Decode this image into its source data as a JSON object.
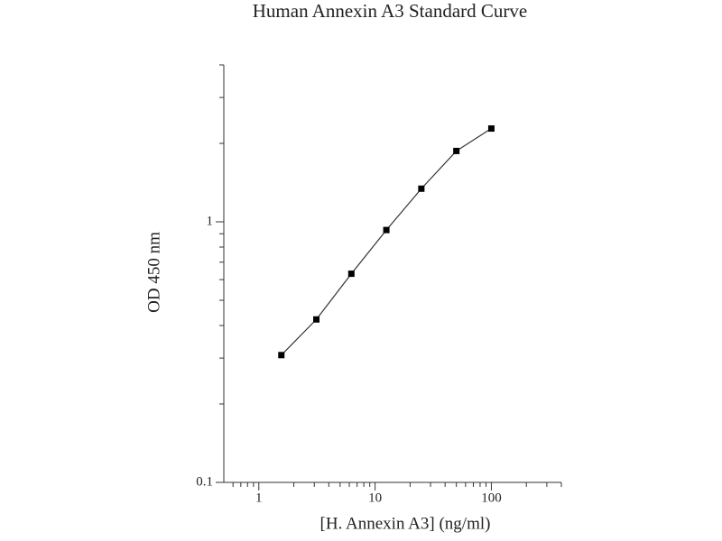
{
  "chart_data": {
    "type": "scatter",
    "title": "Human Annexin A3 Standard Curve",
    "x_label": "[H. Annexin A3] (ng/ml)",
    "y_label": "OD 450 nm",
    "x": [
      1.5625,
      3.125,
      6.25,
      12.5,
      25,
      50,
      100
    ],
    "values": [
      0.308,
      0.422,
      0.632,
      0.93,
      1.34,
      1.87,
      2.28
    ],
    "color": "#000000",
    "x_log": true,
    "y_log": true,
    "xlim": [
      0.5,
      400
    ],
    "ylim": [
      0.1,
      4
    ],
    "xticks": [
      1,
      10,
      100
    ],
    "yticks": [
      0.1,
      1
    ],
    "xminorticks": [
      0.6,
      0.7,
      0.8,
      0.9,
      2,
      3,
      4,
      5,
      6,
      7,
      8,
      9,
      20,
      30,
      40,
      50,
      60,
      70,
      80,
      90,
      200,
      300,
      400
    ],
    "yminorticks": [
      0.2,
      0.3,
      0.4,
      0.5,
      0.6,
      0.7,
      0.8,
      0.9,
      2,
      3,
      4
    ],
    "connect": true
  }
}
